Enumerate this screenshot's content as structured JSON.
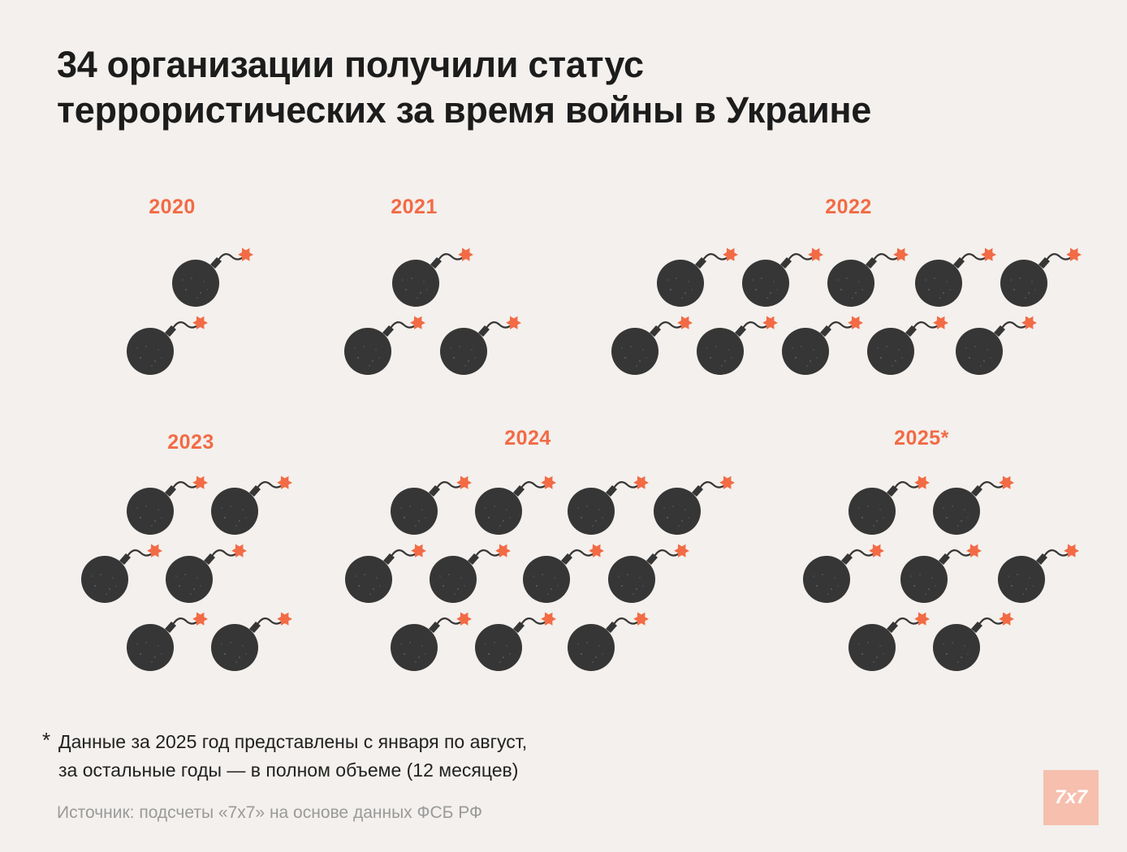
{
  "title_lines": [
    "34 организации получили статус",
    "террористических за время войны в Украине"
  ],
  "colors": {
    "background": "#f3f0ed",
    "accent": "#f26b45",
    "bomb": "#363636",
    "text": "#1c1c1c",
    "source_text": "#9a9a9a",
    "logo_bg": "#f6bfae"
  },
  "icon": "bomb-icon",
  "chart_data": {
    "type": "pictogram",
    "unit": "одна организация",
    "categories": [
      "2020",
      "2021",
      "2022",
      "2023",
      "2024",
      "2025*"
    ],
    "values": [
      2,
      3,
      10,
      6,
      11,
      7
    ],
    "total": 34
  },
  "footnote": {
    "star": "*",
    "lines": [
      "Данные за 2025 год представлены с января по август,",
      "за остальные годы — в полном объеме (12 месяцев)"
    ]
  },
  "source": "Источник: подсчеты «7x7» на основе данных ФСБ РФ",
  "logo": "7x7"
}
